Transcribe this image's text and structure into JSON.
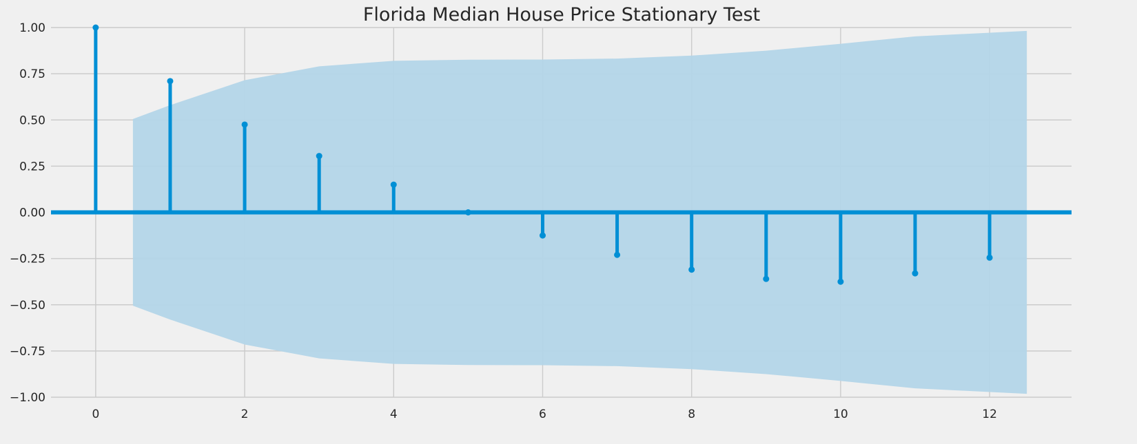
{
  "chart_data": {
    "type": "bar",
    "subtype": "autocorrelation-stem",
    "title": "Florida Median House Price Stationary Test",
    "xlabel": "",
    "ylabel": "",
    "x": [
      0,
      1,
      2,
      3,
      4,
      5,
      6,
      7,
      8,
      9,
      10,
      11,
      12
    ],
    "values": [
      1.0,
      0.71,
      0.475,
      0.305,
      0.15,
      0.0,
      -0.125,
      -0.23,
      -0.31,
      -0.36,
      -0.375,
      -0.33,
      -0.245
    ],
    "confidence_band": {
      "x": [
        0.5,
        1,
        2,
        3,
        4,
        5,
        6,
        7,
        8,
        9,
        10,
        11,
        12.5
      ],
      "upper": [
        0.505,
        0.58,
        0.715,
        0.79,
        0.82,
        0.826,
        0.827,
        0.832,
        0.848,
        0.875,
        0.912,
        0.952,
        0.982
      ],
      "lower": [
        -0.505,
        -0.58,
        -0.715,
        -0.79,
        -0.82,
        -0.826,
        -0.827,
        -0.832,
        -0.848,
        -0.875,
        -0.912,
        -0.952,
        -0.982
      ]
    },
    "xlim": [
      -0.6,
      13.1
    ],
    "ylim": [
      -1.0,
      1.0
    ],
    "xticks": [
      0,
      2,
      4,
      6,
      8,
      10,
      12
    ],
    "xtick_labels": [
      "0",
      "2",
      "4",
      "6",
      "8",
      "10",
      "12"
    ],
    "yticks": [
      -1.0,
      -0.75,
      -0.5,
      -0.25,
      0.0,
      0.25,
      0.5,
      0.75,
      1.0
    ],
    "ytick_labels": [
      "−1.00",
      "−0.75",
      "−0.50",
      "−0.25",
      "0.00",
      "0.25",
      "0.50",
      "0.75",
      "1.00"
    ],
    "grid": true,
    "legend": "none",
    "colors": {
      "stem": "#008fd5",
      "band": "#b3d5e8",
      "grid": "#cbcbcb",
      "background": "#f0f0f0"
    }
  }
}
